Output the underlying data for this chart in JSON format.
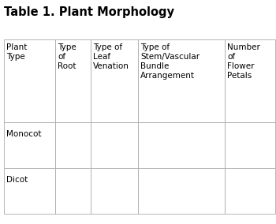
{
  "title": "Table 1. Plant Morphology",
  "title_fontsize": 10.5,
  "title_fontweight": "bold",
  "col_headers": [
    "Plant\nType",
    "Type\nof\nRoot",
    "Type of\nLeaf\nVenation",
    "Type of\nStem/Vascular\nBundle\nArrangement",
    "Number\nof\nFlower\nPetals"
  ],
  "row_labels": [
    "Monocot",
    "Dicot"
  ],
  "background_color": "#ffffff",
  "border_color": "#aaaaaa",
  "text_color": "#000000",
  "fontsize": 7.5
}
